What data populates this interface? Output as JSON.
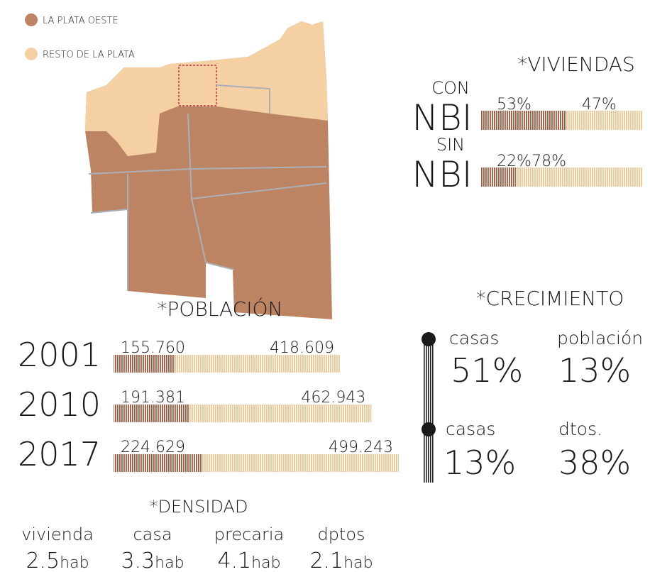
{
  "legend": [
    {
      "label": "LA PLATA OESTE",
      "color": "#bd8463"
    },
    {
      "label": "RESTO DE LA PLATA",
      "color": "#f5d0a3"
    }
  ],
  "bar_colors": [
    "#a4573a",
    "#f0c48c"
  ],
  "viviendas": {
    "title": "*VIVIENDAS",
    "rows": [
      {
        "prefix": "CON",
        "label": "NBI",
        "values": [
          53,
          47
        ],
        "value_labels": [
          "53%",
          "47%"
        ]
      },
      {
        "prefix": "SIN",
        "label": "NBI",
        "values": [
          22,
          78
        ],
        "value_labels": [
          "22%",
          "78%"
        ]
      }
    ]
  },
  "poblacion": {
    "title": "*POBLACIÓN",
    "rows": [
      {
        "year": "2001",
        "values": [
          155760,
          418609
        ],
        "value_labels": [
          "155.760",
          "418.609"
        ]
      },
      {
        "year": "2010",
        "values": [
          191381,
          462943
        ],
        "value_labels": [
          "191.381",
          "462.943"
        ]
      },
      {
        "year": "2017",
        "values": [
          224629,
          499243
        ],
        "value_labels": [
          "224.629",
          "499.243"
        ]
      }
    ]
  },
  "crecimiento": {
    "title": "*CRECIMIENTO",
    "items": [
      {
        "label": "casas",
        "value": "51%"
      },
      {
        "label": "población",
        "value": "13%"
      },
      {
        "label": "casas",
        "value": "13%"
      },
      {
        "label": "dtos.",
        "value": "38%"
      }
    ]
  },
  "densidad": {
    "title": "*DENSIDAD",
    "items": [
      {
        "label": "vivienda",
        "value": "2.5",
        "unit": "hab"
      },
      {
        "label": "casa",
        "value": "3.3",
        "unit": "hab"
      },
      {
        "label": "precaria",
        "value": "4.1",
        "unit": "hab"
      },
      {
        "label": "dptos",
        "value": "2.1",
        "unit": "hab"
      }
    ]
  }
}
